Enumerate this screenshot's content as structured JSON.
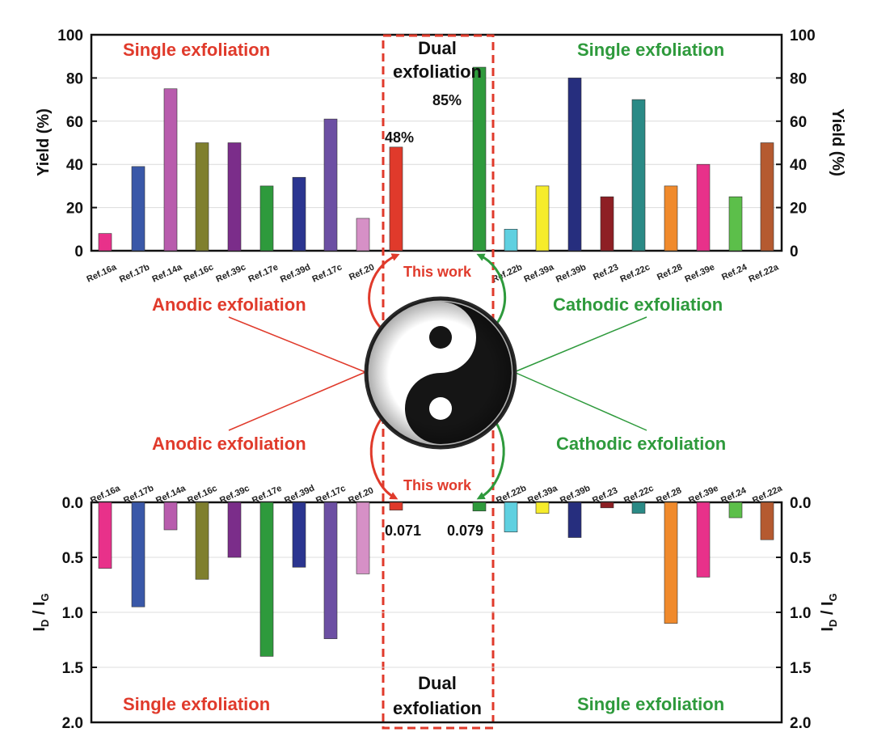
{
  "colors": {
    "red": "#e03a2b",
    "green": "#2e9a3c",
    "frame": "#111111",
    "dashed_box": "#e03a2b"
  },
  "labels": {
    "single_exfoliation": "Single exfoliation",
    "dual_exfoliation_line1": "Dual",
    "dual_exfoliation_line2": "exfoliation",
    "anodic_exfoliation": "Anodic exfoliation",
    "cathodic_exfoliation": "Cathodic exfoliation",
    "this_work": "This work",
    "yin_yang_icon": "yin-yang-icon"
  },
  "chart_data": [
    {
      "type": "bar",
      "panel": "top",
      "ylabel": "Yield (%)",
      "ylabel_right": "Yield (%)",
      "ylim": [
        0,
        100
      ],
      "yticks": [
        "0",
        "20",
        "40",
        "60",
        "80",
        "100"
      ],
      "categories": [
        "Ref.16a",
        "Ref.17b",
        "Ref.14a",
        "Ref.16c",
        "Ref.39c",
        "Ref.17e",
        "Ref.39d",
        "Ref.17c",
        "Ref.20",
        "This work (anodic)",
        "This work (cathodic)",
        "Ref.22b",
        "Ref.39a",
        "Ref.39b",
        "Ref.23",
        "Ref.22c",
        "Ref.28",
        "Ref.39e",
        "Ref.24",
        "Ref.22a"
      ],
      "values": [
        8,
        39,
        75,
        50,
        50,
        30,
        34,
        61,
        15,
        48,
        85,
        10,
        30,
        80,
        25,
        70,
        30,
        40,
        25,
        50
      ],
      "colors": [
        "#e8318a",
        "#3a58a8",
        "#b85cad",
        "#7f7f2e",
        "#7b2d8a",
        "#2e9a3c",
        "#2b3590",
        "#6c4fa3",
        "#d690c6",
        "#e03a2b",
        "#2e9a3c",
        "#5fd0e0",
        "#f6ec2b",
        "#262e7e",
        "#8e1f24",
        "#2a8a86",
        "#f08a2c",
        "#e8318a",
        "#5cbf4a",
        "#b55a30"
      ],
      "data_labels": {
        "this_work_anodic": "48%",
        "this_work_cathodic": "85%"
      }
    },
    {
      "type": "bar",
      "panel": "bottom",
      "ylabel": "I_D / I_G",
      "ylabel_right": "I_D / I_G",
      "ylim": [
        0,
        2.0
      ],
      "inverted": true,
      "yticks": [
        "0.0",
        "0.5",
        "1.0",
        "1.5",
        "2.0"
      ],
      "categories": [
        "Ref.16a",
        "Ref.17b",
        "Ref.14a",
        "Ref.16c",
        "Ref.39c",
        "Ref.17e",
        "Ref.39d",
        "Ref.17c",
        "Ref.20",
        "This work (anodic)",
        "This work (cathodic)",
        "Ref.22b",
        "Ref.39a",
        "Ref.39b",
        "Ref.23",
        "Ref.22c",
        "Ref.28",
        "Ref.39e",
        "Ref.24",
        "Ref.22a"
      ],
      "values": [
        0.6,
        0.95,
        0.25,
        0.7,
        0.5,
        1.4,
        0.59,
        1.24,
        0.65,
        0.071,
        0.079,
        0.27,
        0.1,
        0.32,
        0.05,
        0.1,
        1.1,
        0.68,
        0.14,
        0.34
      ],
      "colors": [
        "#e8318a",
        "#3a58a8",
        "#b85cad",
        "#7f7f2e",
        "#7b2d8a",
        "#2e9a3c",
        "#2b3590",
        "#6c4fa3",
        "#d690c6",
        "#e03a2b",
        "#2e9a3c",
        "#5fd0e0",
        "#f6ec2b",
        "#262e7e",
        "#8e1f24",
        "#2a8a86",
        "#f08a2c",
        "#e8318a",
        "#5cbf4a",
        "#b55a30"
      ],
      "data_labels": {
        "this_work_anodic": "0.071",
        "this_work_cathodic": "0.079"
      }
    }
  ]
}
